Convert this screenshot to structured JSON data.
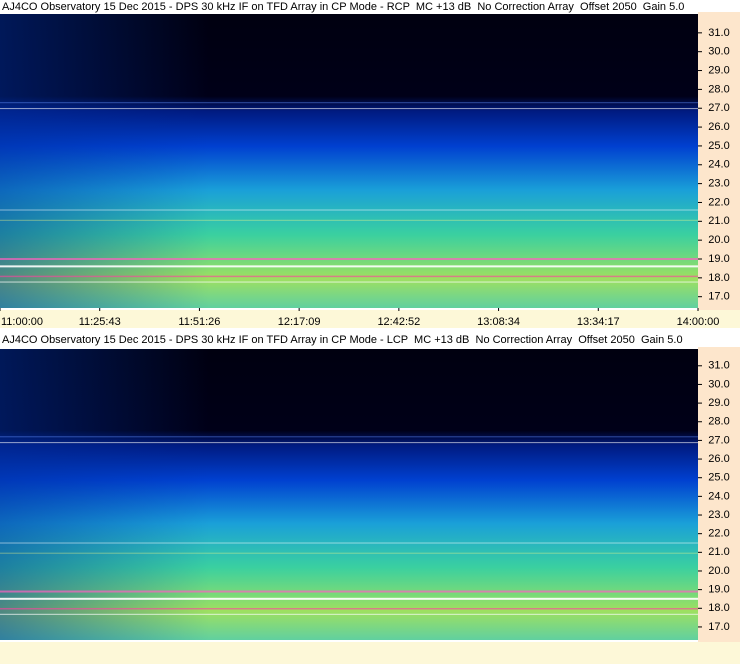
{
  "chart_data": [
    {
      "type": "spectrogram",
      "title": "AJ4CO Observatory 15 Dec 2015 - DPS 30 kHz IF on TFD Array in CP Mode - RCP  MC +13 dB  No Correction Array  Offset 2050  Gain 5.0",
      "x": [
        "11:00:00",
        "11:25:43",
        "11:51:26",
        "12:17:09",
        "12:42:52",
        "13:08:34",
        "13:34:17",
        "14:00:00"
      ],
      "ylim": [
        16.4,
        32.0
      ],
      "yticks": [
        {
          "value": 17,
          "label": "17.0"
        },
        {
          "value": 18,
          "label": "18.0"
        },
        {
          "value": 19,
          "label": "19.0"
        },
        {
          "value": 20,
          "label": "20.0"
        },
        {
          "value": 21,
          "label": "21.0"
        },
        {
          "value": 22,
          "label": "22.0"
        },
        {
          "value": 23,
          "label": "23.0"
        },
        {
          "value": 24,
          "label": "24.0"
        },
        {
          "value": 25,
          "label": "25.0"
        },
        {
          "value": 26,
          "label": "26.0"
        },
        {
          "value": 27,
          "label": "27.0"
        },
        {
          "value": 28,
          "label": "28.0"
        },
        {
          "value": 29,
          "label": "29.0"
        },
        {
          "value": 30,
          "label": "30.0"
        },
        {
          "value": 31,
          "label": "31.0"
        }
      ]
    },
    {
      "type": "spectrogram",
      "title": "AJ4CO Observatory 15 Dec 2015 - DPS 30 kHz IF on TFD Array in CP Mode - LCP  MC +13 dB  No Correction Array  Offset 2050  Gain 5.0",
      "ylim": [
        16.3,
        31.9
      ],
      "yticks": [
        {
          "value": 17,
          "label": "17.0"
        },
        {
          "value": 18,
          "label": "18.0"
        },
        {
          "value": 19,
          "label": "19.0"
        },
        {
          "value": 20,
          "label": "20.0"
        },
        {
          "value": 21,
          "label": "21.0"
        },
        {
          "value": 22,
          "label": "22.0"
        },
        {
          "value": 23,
          "label": "23.0"
        },
        {
          "value": 24,
          "label": "24.0"
        },
        {
          "value": 25,
          "label": "25.0"
        },
        {
          "value": 26,
          "label": "26.0"
        },
        {
          "value": 27,
          "label": "27.0"
        },
        {
          "value": 28,
          "label": "28.0"
        },
        {
          "value": 29,
          "label": "29.0"
        },
        {
          "value": 30,
          "label": "30.0"
        },
        {
          "value": 31,
          "label": "31.0"
        }
      ]
    }
  ]
}
